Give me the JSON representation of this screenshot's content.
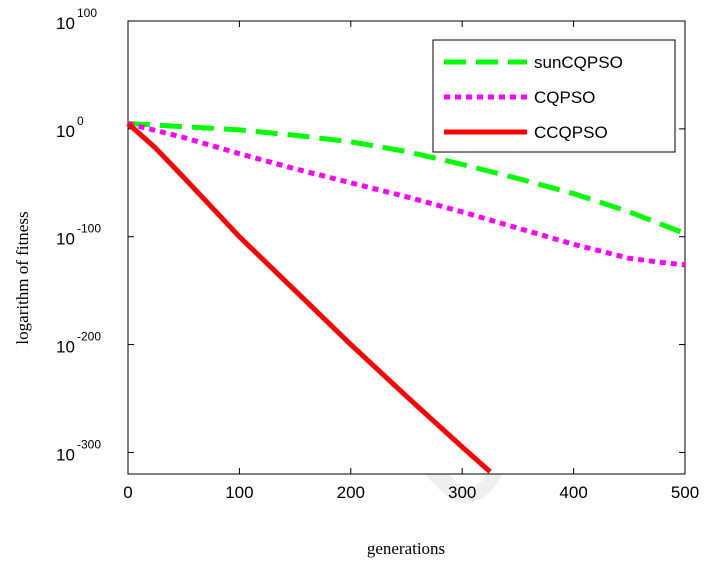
{
  "chart_data": {
    "type": "line",
    "title": "",
    "xlabel": "generations",
    "ylabel": "logarithm of fitness",
    "xlim": [
      0,
      500
    ],
    "ylim": [
      -320,
      100
    ],
    "yscale": "log10",
    "xticks": [
      "0",
      "100",
      "200",
      "300",
      "400",
      "500"
    ],
    "yticks": [
      {
        "exponent": "100",
        "value": 100
      },
      {
        "exponent": "0",
        "value": 0
      },
      {
        "exponent": "-100",
        "value": -100
      },
      {
        "exponent": "-200",
        "value": -200
      },
      {
        "exponent": "-300",
        "value": -300
      }
    ],
    "grid": false,
    "legend_position": "top-right",
    "series": [
      {
        "name": "sunCQPSO",
        "color": "#00ff00",
        "style": "dashed",
        "x": [
          0,
          50,
          100,
          150,
          200,
          250,
          300,
          350,
          400,
          450,
          500
        ],
        "y": [
          5,
          2,
          -1,
          -6,
          -12,
          -21,
          -33,
          -46,
          -60,
          -77,
          -97
        ]
      },
      {
        "name": "CQPSO",
        "color": "#ff00ff",
        "style": "dotted",
        "x": [
          0,
          50,
          100,
          150,
          200,
          250,
          300,
          350,
          400,
          450,
          480,
          500
        ],
        "y": [
          5,
          -8,
          -23,
          -37,
          -50,
          -63,
          -77,
          -92,
          -107,
          -120,
          -124,
          -126
        ]
      },
      {
        "name": "CCQPSO",
        "color": "#ff0000",
        "style": "solid",
        "x": [
          0,
          25,
          50,
          100,
          150,
          200,
          250,
          300,
          325
        ],
        "y": [
          5,
          -18,
          -45,
          -100,
          -150,
          -200,
          -248,
          -295,
          -318
        ]
      }
    ]
  }
}
